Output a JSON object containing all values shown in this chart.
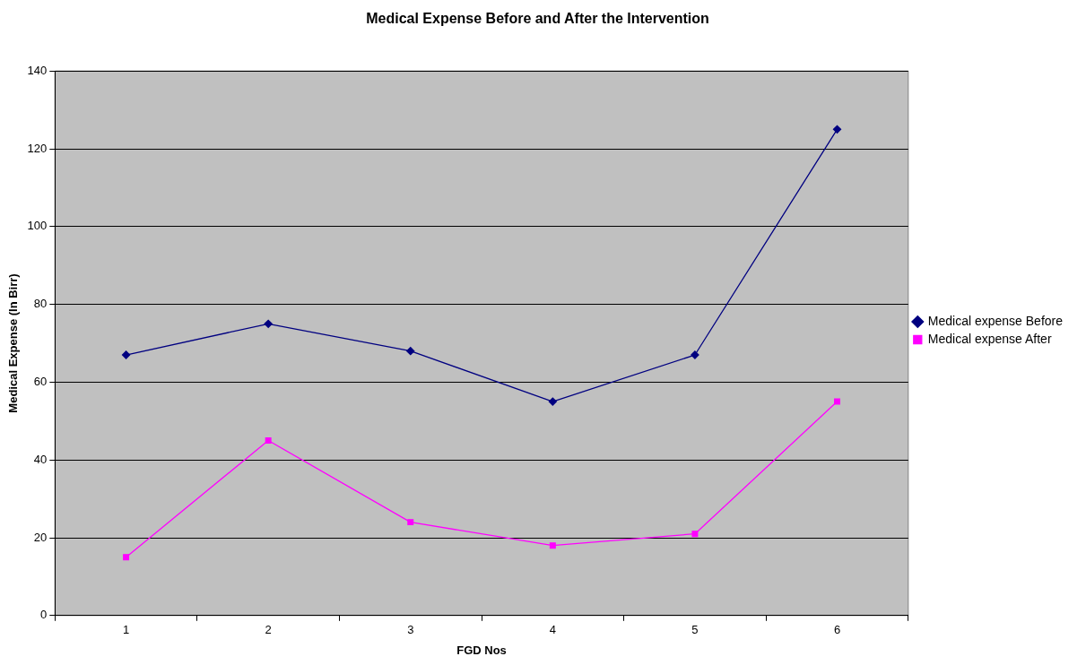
{
  "chart_data": {
    "type": "line",
    "title": "Medical Expense Before and After the Intervention",
    "xlabel": "FGD Nos",
    "ylabel": "Medical Expense (In Birr)",
    "categories": [
      "1",
      "2",
      "3",
      "4",
      "5",
      "6"
    ],
    "series": [
      {
        "name": "Medical expense Before",
        "color": "#000080",
        "marker": "diamond",
        "values": [
          67,
          75,
          68,
          55,
          67,
          125
        ]
      },
      {
        "name": "Medical expense After",
        "color": "#ff00ff",
        "marker": "square",
        "values": [
          15,
          45,
          24,
          18,
          21,
          55
        ]
      }
    ],
    "ylim": [
      0,
      140
    ],
    "yticks": [
      0,
      20,
      40,
      60,
      80,
      100,
      120,
      140
    ],
    "grid": "y",
    "legend": "right",
    "line_style": "solid"
  }
}
